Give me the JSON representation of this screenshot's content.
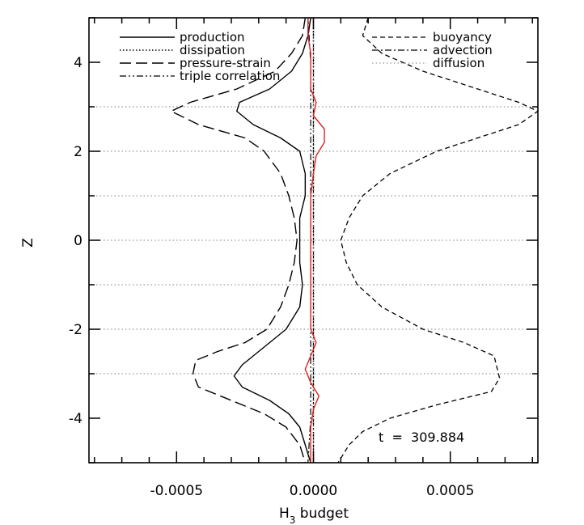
{
  "chart_data": {
    "type": "line",
    "title": "",
    "xlabel": "H",
    "xlabel_subscript": "3",
    "xlabel_suffix": " budget",
    "ylabel": "Z",
    "xlim": [
      -0.00082,
      0.00082
    ],
    "ylim": [
      -5,
      5
    ],
    "x_ticks": [
      -0.0005,
      0.0,
      0.0005
    ],
    "x_tick_labels": [
      "-0.0005",
      "0.0000",
      "0.0005"
    ],
    "y_ticks": [
      -4,
      -2,
      0,
      2,
      4
    ],
    "y_tick_labels": [
      "-4",
      "-2",
      "0",
      "2",
      "4"
    ],
    "annotation": "t  =  309.884",
    "series": [
      {
        "name": "production",
        "style": "solid",
        "color": "#000000",
        "points": [
          [
            -1e-05,
            5
          ],
          [
            -2e-05,
            4.6
          ],
          [
            -4e-05,
            4.2
          ],
          [
            -8e-05,
            3.8
          ],
          [
            -0.00016,
            3.4
          ],
          [
            -0.00027,
            3.1
          ],
          [
            -0.00028,
            2.9
          ],
          [
            -0.00022,
            2.6
          ],
          [
            -0.00012,
            2.3
          ],
          [
            -5e-05,
            2.0
          ],
          [
            -3e-05,
            1.5
          ],
          [
            -3e-05,
            1.0
          ],
          [
            -5e-05,
            0.5
          ],
          [
            -5e-05,
            0.0
          ],
          [
            -5e-05,
            -0.5
          ],
          [
            -4e-05,
            -1.0
          ],
          [
            -5e-05,
            -1.5
          ],
          [
            -0.0001,
            -2.0
          ],
          [
            -0.00018,
            -2.4
          ],
          [
            -0.00026,
            -2.8
          ],
          [
            -0.00029,
            -3.05
          ],
          [
            -0.00026,
            -3.3
          ],
          [
            -0.00016,
            -3.6
          ],
          [
            -9e-05,
            -3.9
          ],
          [
            -5e-05,
            -4.2
          ],
          [
            -3e-05,
            -4.6
          ],
          [
            -1e-05,
            -5
          ]
        ]
      },
      {
        "name": "dissipation",
        "style": "dotted",
        "color": "#000000",
        "points": [
          [
            0,
            5
          ],
          [
            0,
            -5
          ]
        ]
      },
      {
        "name": "pressure-strain",
        "style": "longdash",
        "color": "#000000",
        "points": [
          [
            -3e-05,
            5
          ],
          [
            -4e-05,
            4.6
          ],
          [
            -8e-05,
            4.2
          ],
          [
            -0.00014,
            3.8
          ],
          [
            -0.00028,
            3.4
          ],
          [
            -0.00045,
            3.1
          ],
          [
            -0.00052,
            2.9
          ],
          [
            -0.00042,
            2.6
          ],
          [
            -0.00025,
            2.3
          ],
          [
            -0.00018,
            2.0
          ],
          [
            -0.00012,
            1.5
          ],
          [
            -9e-05,
            1.0
          ],
          [
            -7e-05,
            0.5
          ],
          [
            -6e-05,
            0.0
          ],
          [
            -7e-05,
            -0.5
          ],
          [
            -9e-05,
            -1.0
          ],
          [
            -0.00012,
            -1.5
          ],
          [
            -0.00017,
            -2.0
          ],
          [
            -0.00025,
            -2.3
          ],
          [
            -0.00035,
            -2.5
          ],
          [
            -0.00043,
            -2.7
          ],
          [
            -0.00044,
            -3.0
          ],
          [
            -0.00042,
            -3.3
          ],
          [
            -0.0003,
            -3.6
          ],
          [
            -0.00018,
            -3.9
          ],
          [
            -0.0001,
            -4.2
          ],
          [
            -5e-05,
            -4.6
          ],
          [
            -3e-05,
            -5
          ]
        ]
      },
      {
        "name": "triple correlation",
        "style": "dashdotdot",
        "color": "#000000",
        "points": [
          [
            -2e-05,
            5
          ],
          [
            -1e-05,
            4
          ],
          [
            -1e-05,
            3
          ],
          [
            -1e-05,
            2
          ],
          [
            -1e-05,
            1
          ],
          [
            -1e-05,
            0
          ],
          [
            -1e-05,
            -1
          ],
          [
            -1e-05,
            -2
          ],
          [
            -1e-05,
            -3
          ],
          [
            -1e-05,
            -4
          ],
          [
            -2e-05,
            -5
          ]
        ]
      },
      {
        "name": "buoyancy",
        "style": "shortdash",
        "color": "#000000",
        "points": [
          [
            0.0002,
            5
          ],
          [
            0.00018,
            4.6
          ],
          [
            0.00025,
            4.2
          ],
          [
            0.0004,
            3.8
          ],
          [
            0.0006,
            3.4
          ],
          [
            0.00075,
            3.1
          ],
          [
            0.00082,
            2.9
          ],
          [
            0.00075,
            2.6
          ],
          [
            0.0006,
            2.3
          ],
          [
            0.00045,
            2.0
          ],
          [
            0.00028,
            1.5
          ],
          [
            0.00018,
            1.0
          ],
          [
            0.00013,
            0.5
          ],
          [
            0.0001,
            0.0
          ],
          [
            0.00012,
            -0.5
          ],
          [
            0.00016,
            -1.0
          ],
          [
            0.00025,
            -1.5
          ],
          [
            0.0004,
            -2.0
          ],
          [
            0.00055,
            -2.3
          ],
          [
            0.00066,
            -2.6
          ],
          [
            0.00068,
            -3.1
          ],
          [
            0.00065,
            -3.4
          ],
          [
            0.00045,
            -3.7
          ],
          [
            0.00028,
            -4.0
          ],
          [
            0.00018,
            -4.3
          ],
          [
            0.00013,
            -4.6
          ],
          [
            9e-05,
            -5
          ]
        ]
      },
      {
        "name": "advection",
        "style": "dashdot",
        "color": "#000000",
        "points": [
          [
            0,
            5
          ],
          [
            0,
            -5
          ]
        ]
      },
      {
        "name": "diffusion",
        "style": "dotted-gray",
        "color": "#999999",
        "points": [
          [
            0,
            5
          ],
          [
            0,
            -5
          ]
        ]
      },
      {
        "name": "",
        "style": "solid-red",
        "color": "#e02020",
        "points": [
          [
            -2e-05,
            5
          ],
          [
            -2e-05,
            4.6
          ],
          [
            -1e-05,
            4.2
          ],
          [
            -1e-05,
            3.8
          ],
          [
            -1e-05,
            3.4
          ],
          [
            1e-05,
            3.1
          ],
          [
            0.0,
            2.8
          ],
          [
            4e-05,
            2.5
          ],
          [
            4e-05,
            2.2
          ],
          [
            1e-05,
            1.9
          ],
          [
            0.0,
            1.5
          ],
          [
            -1e-05,
            1.0
          ],
          [
            -1e-05,
            0.5
          ],
          [
            -1e-05,
            0.0
          ],
          [
            -1e-05,
            -0.5
          ],
          [
            -1e-05,
            -1.0
          ],
          [
            -1e-05,
            -1.5
          ],
          [
            -1e-05,
            -2.0
          ],
          [
            1e-05,
            -2.3
          ],
          [
            -1e-05,
            -2.6
          ],
          [
            -3e-05,
            -2.9
          ],
          [
            -1e-05,
            -3.2
          ],
          [
            2e-05,
            -3.5
          ],
          [
            0.0,
            -3.8
          ],
          [
            -1e-05,
            -4.2
          ],
          [
            -1e-05,
            -4.6
          ],
          [
            -1e-05,
            -5
          ]
        ]
      }
    ],
    "hlines": [
      -3,
      -2,
      -1,
      0,
      1,
      2,
      3
    ],
    "legend_left": [
      "production",
      "dissipation",
      "pressure-strain",
      "triple correlation"
    ],
    "legend_right": [
      "buoyancy",
      "advection",
      "diffusion"
    ]
  }
}
